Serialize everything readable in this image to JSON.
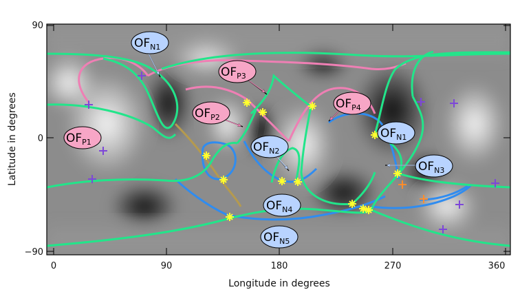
{
  "figure": {
    "xlabel": "Longitude in degrees",
    "ylabel": "Latitude in degrees",
    "xticks": [
      "0",
      "90",
      "180",
      "270",
      "360"
    ],
    "yticks": [
      "90",
      "0",
      "−90"
    ],
    "colors": {
      "green": "#22e58a",
      "pink": "#ef7fb4",
      "blue": "#2f8cf0",
      "olive": "#b59a4e",
      "yellow": "#ffff2e",
      "purple": "#7d47d8",
      "orange": "#ff8c2a",
      "bubble_pink": "#f7a6c6",
      "bubble_blue": "#b8d3ff"
    }
  },
  "labels": {
    "ofp1": {
      "main": "OF",
      "sub": "P1"
    },
    "ofp2": {
      "main": "OF",
      "sub": "P2"
    },
    "ofp3": {
      "main": "OF",
      "sub": "P3"
    },
    "ofp4": {
      "main": "OF",
      "sub": "P4"
    },
    "ofn1a": {
      "main": "OF",
      "sub": "N1"
    },
    "ofn1b": {
      "main": "OF",
      "sub": "N1"
    },
    "ofn2": {
      "main": "OF",
      "sub": "N2"
    },
    "ofn3": {
      "main": "OF",
      "sub": "N3"
    },
    "ofn4": {
      "main": "OF",
      "sub": "N4"
    },
    "ofn5": {
      "main": "OF",
      "sub": "N5"
    }
  }
}
